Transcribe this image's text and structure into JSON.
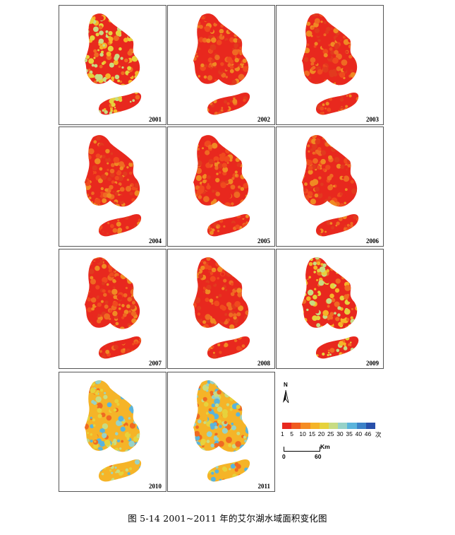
{
  "panels": [
    {
      "year": "2001",
      "variant": "mixed"
    },
    {
      "year": "2002",
      "variant": "red"
    },
    {
      "year": "2003",
      "variant": "red"
    },
    {
      "year": "2004",
      "variant": "red"
    },
    {
      "year": "2005",
      "variant": "red"
    },
    {
      "year": "2006",
      "variant": "red"
    },
    {
      "year": "2007",
      "variant": "red"
    },
    {
      "year": "2008",
      "variant": "red"
    },
    {
      "year": "2009",
      "variant": "mixed"
    },
    {
      "year": "2010",
      "variant": "blue"
    },
    {
      "year": "2011",
      "variant": "blue"
    }
  ],
  "legend": {
    "north_label": "N",
    "ticks": [
      "1",
      "5",
      "10",
      "15",
      "20",
      "25",
      "30",
      "35",
      "40",
      "46"
    ],
    "unit": "次",
    "colors": [
      "#e8281e",
      "#f05a1e",
      "#f58c23",
      "#f5b428",
      "#e6d23c",
      "#c8dc82",
      "#96d2c8",
      "#5ab4dc",
      "#3c82c8",
      "#2850aa"
    ],
    "scale_unit": "Km",
    "scale_start": "0",
    "scale_end": "60"
  },
  "caption": "图 5-14  2001~2011 年的艾尔湖水域面积变化图"
}
